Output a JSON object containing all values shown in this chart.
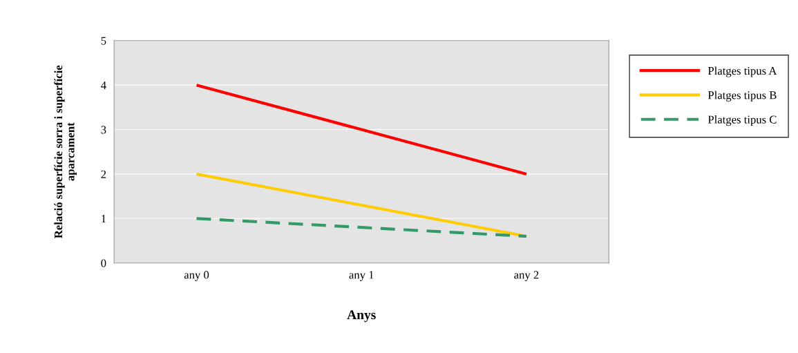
{
  "chart_data": {
    "type": "line",
    "xlabel": "Anys",
    "ylabel": "Relació superfície sorra i superfície\naparcament",
    "categories": [
      "any 0",
      "any 1",
      "any 2"
    ],
    "series": [
      {
        "name": "Platges tipus A",
        "color": "#ff0000",
        "values": [
          4,
          3,
          2
        ],
        "line_style": "solid"
      },
      {
        "name": "Platges tipus B",
        "color": "#ffcc00",
        "values": [
          2,
          1.3,
          0.6
        ],
        "line_style": "solid"
      },
      {
        "name": "Platges tipus C",
        "color": "#339966",
        "values": [
          1,
          0.8,
          0.6
        ],
        "line_style": "dashed"
      }
    ],
    "ylim": [
      0,
      5
    ],
    "yticks": [
      0,
      1,
      2,
      3,
      4,
      5
    ],
    "grid": "y",
    "legend": "right",
    "marker": "none"
  }
}
